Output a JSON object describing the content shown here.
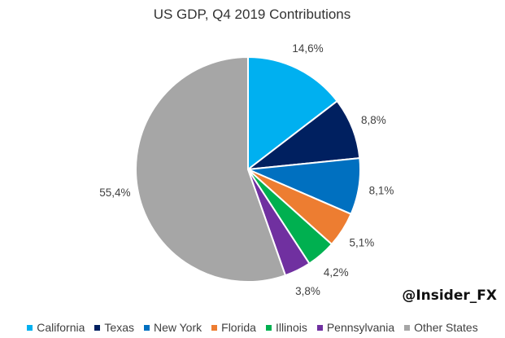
{
  "chart_data": {
    "type": "pie",
    "title": "US GDP, Q4 2019 Contributions",
    "categories": [
      "California",
      "Texas",
      "New York",
      "Florida",
      "Illinois",
      "Pennsylvania",
      "Other States"
    ],
    "values": [
      14.6,
      8.8,
      8.1,
      5.1,
      4.2,
      3.8,
      55.4
    ],
    "labels": [
      "14,6%",
      "8,8%",
      "8,1%",
      "5,1%",
      "4,2%",
      "3,8%",
      "55,4%"
    ],
    "colors": [
      "#00b0f0",
      "#002060",
      "#0070c0",
      "#ed7d31",
      "#00b050",
      "#7030a0",
      "#a6a6a6"
    ],
    "start_angle": "12 o'clock, clockwise",
    "legend_position": "bottom"
  },
  "watermark": "@Insider_FX"
}
